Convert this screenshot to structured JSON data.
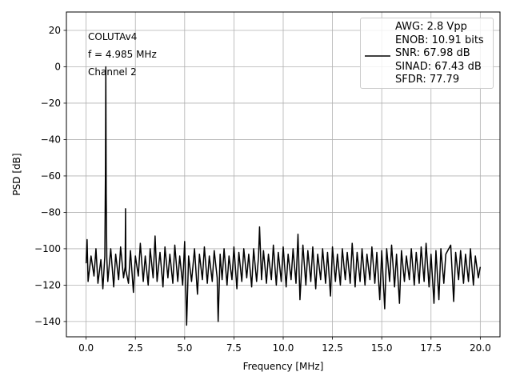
{
  "chart_data": {
    "type": "line",
    "annotation": [
      "COLUTAv4",
      "f = 4.985 MHz",
      "Channel 2"
    ],
    "x_label": "Frequency [MHz]",
    "y_label": "PSD [dB]",
    "xlim": [
      -1.0,
      21.0
    ],
    "ylim": [
      -148.4,
      30.1
    ],
    "xticks": [
      {
        "value": 0,
        "label": "0.0"
      },
      2.5,
      {
        "value": 5,
        "label": "5.0"
      },
      7.5,
      {
        "value": 10,
        "label": "10.0"
      },
      12.5,
      {
        "value": 15,
        "label": "15.0"
      },
      17.5,
      {
        "value": 20,
        "label": "20.0"
      }
    ],
    "yticks": [
      {
        "value": -140,
        "label": "−140"
      },
      {
        "value": -120,
        "label": "−120"
      },
      {
        "value": -100,
        "label": "−100"
      },
      {
        "value": -80,
        "label": "−80"
      },
      {
        "value": -60,
        "label": "−60"
      },
      {
        "value": -40,
        "label": "−40"
      },
      {
        "value": -20,
        "label": "−20"
      },
      0,
      20
    ],
    "grid": true,
    "legend_position": "upper-right",
    "x": [
      0.0,
      0.05,
      0.1,
      0.25,
      0.4,
      0.5,
      0.6,
      0.75,
      0.85,
      0.95,
      0.98,
      1.0,
      1.02,
      1.05,
      1.1,
      1.25,
      1.4,
      1.5,
      1.65,
      1.75,
      1.9,
      1.98,
      2.0,
      2.02,
      2.15,
      2.25,
      2.4,
      2.5,
      2.65,
      2.75,
      2.9,
      3.0,
      3.15,
      3.25,
      3.4,
      3.5,
      3.6,
      3.75,
      3.9,
      4.0,
      4.15,
      4.25,
      4.4,
      4.5,
      4.65,
      4.75,
      4.9,
      5.0,
      5.1,
      5.2,
      5.35,
      5.5,
      5.65,
      5.75,
      5.9,
      6.0,
      6.15,
      6.25,
      6.4,
      6.5,
      6.65,
      6.7,
      6.8,
      6.9,
      7.0,
      7.15,
      7.25,
      7.4,
      7.5,
      7.65,
      7.75,
      7.9,
      8.0,
      8.15,
      8.25,
      8.4,
      8.5,
      8.65,
      8.75,
      8.8,
      8.9,
      9.0,
      9.15,
      9.25,
      9.4,
      9.5,
      9.65,
      9.75,
      9.9,
      10.0,
      10.15,
      10.25,
      10.4,
      10.5,
      10.65,
      10.75,
      10.85,
      11.0,
      11.15,
      11.25,
      11.4,
      11.5,
      11.65,
      11.75,
      11.9,
      12.0,
      12.15,
      12.25,
      12.4,
      12.5,
      12.65,
      12.75,
      12.9,
      13.0,
      13.15,
      13.25,
      13.4,
      13.5,
      13.65,
      13.75,
      13.9,
      14.0,
      14.15,
      14.25,
      14.4,
      14.5,
      14.65,
      14.75,
      14.9,
      15.0,
      15.15,
      15.25,
      15.4,
      15.5,
      15.65,
      15.75,
      15.9,
      16.0,
      16.15,
      16.25,
      16.4,
      16.5,
      16.65,
      16.75,
      16.9,
      17.0,
      17.15,
      17.25,
      17.4,
      17.5,
      17.65,
      17.75,
      17.9,
      18.0,
      18.15,
      18.25,
      18.5,
      18.65,
      18.75,
      18.9,
      19.0,
      19.15,
      19.25,
      19.4,
      19.5,
      19.65,
      19.75,
      19.9,
      20.0
    ],
    "series": [
      {
        "name": "AWG: 2.8 Vpp\nENOB: 10.91 bits\nSNR: 67.98 dB\nSINAD: 67.43 dB\nSFDR: 77.79",
        "color": "#000000",
        "values": [
          -108,
          -95,
          -118,
          -104,
          -115,
          -100,
          -119,
          -106,
          -122,
          -104,
          -60,
          0,
          -70,
          -105,
          -118,
          -100,
          -121,
          -103,
          -117,
          -99,
          -116,
          -110,
          -78,
          -112,
          -119,
          -101,
          -124,
          -104,
          -115,
          -97,
          -118,
          -104,
          -120,
          -100,
          -116,
          -93,
          -118,
          -102,
          -121,
          -99,
          -116,
          -103,
          -119,
          -98,
          -118,
          -104,
          -120,
          -96,
          -142,
          -104,
          -118,
          -100,
          -125,
          -103,
          -117,
          -99,
          -119,
          -104,
          -118,
          -101,
          -116,
          -140,
          -103,
          -117,
          -100,
          -120,
          -104,
          -117,
          -99,
          -122,
          -102,
          -118,
          -100,
          -116,
          -103,
          -121,
          -100,
          -118,
          -104,
          -88,
          -117,
          -101,
          -119,
          -103,
          -117,
          -98,
          -120,
          -102,
          -118,
          -99,
          -121,
          -103,
          -117,
          -100,
          -119,
          -92,
          -128,
          -98,
          -120,
          -101,
          -118,
          -99,
          -122,
          -103,
          -117,
          -100,
          -119,
          -102,
          -126,
          -99,
          -118,
          -103,
          -120,
          -100,
          -117,
          -102,
          -119,
          -97,
          -121,
          -102,
          -118,
          -100,
          -120,
          -103,
          -117,
          -99,
          -119,
          -102,
          -128,
          -101,
          -133,
          -100,
          -118,
          -98,
          -121,
          -103,
          -130,
          -101,
          -118,
          -104,
          -117,
          -100,
          -120,
          -102,
          -119,
          -99,
          -118,
          -97,
          -121,
          -103,
          -130,
          -101,
          -128,
          -100,
          -119,
          -103,
          -98,
          -129,
          -102,
          -117,
          -101,
          -119,
          -103,
          -118,
          -100,
          -120,
          -104,
          -116,
          -110
        ]
      }
    ]
  }
}
